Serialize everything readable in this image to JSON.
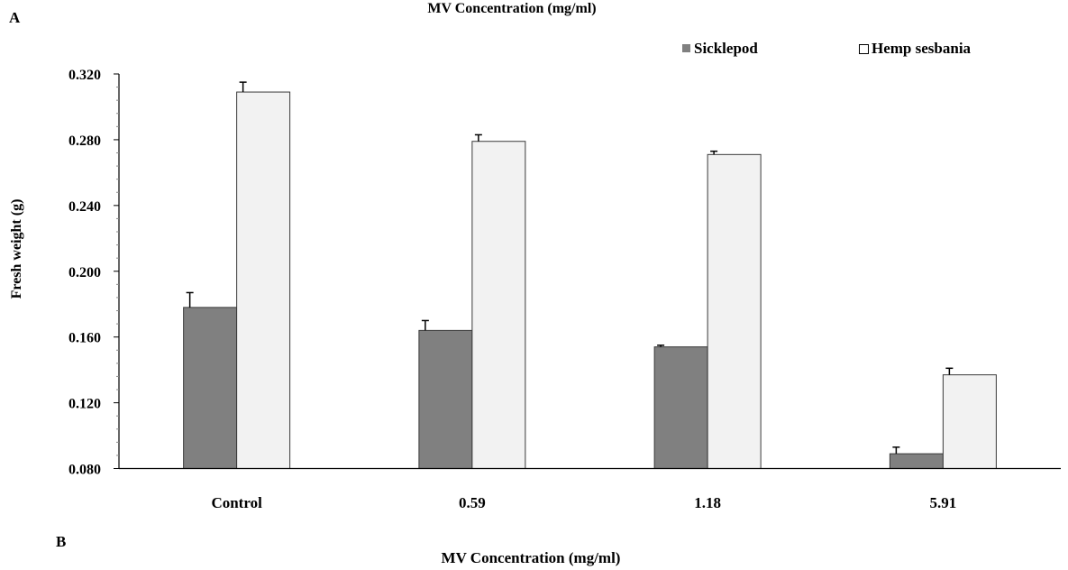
{
  "panel_labels": {
    "a": "A",
    "b": "B"
  },
  "colors": {
    "sicklepod": "#808080",
    "hemp_sesbania": "#f2f2f2",
    "bar_stroke": "#3a3a3a",
    "axis": "#000000",
    "text": "#000000"
  },
  "chart_data": {
    "type": "bar",
    "title": "MV Concentration (mg/ml)",
    "xlabel": "MV Concentration (mg/ml)",
    "ylabel": "Fresh weight (g)",
    "categories": [
      "Control",
      "0.59",
      "1.18",
      "5.91"
    ],
    "series": [
      {
        "name": "Sicklepod",
        "values": [
          0.178,
          0.164,
          0.154,
          0.089
        ],
        "errors": [
          0.009,
          0.006,
          0.001,
          0.004
        ]
      },
      {
        "name": "Hemp sesbania",
        "values": [
          0.309,
          0.279,
          0.271,
          0.137
        ],
        "errors": [
          0.006,
          0.004,
          0.002,
          0.004
        ]
      }
    ],
    "ylim": [
      0.08,
      0.32
    ],
    "yticks": [
      "0.080",
      "0.120",
      "0.160",
      "0.200",
      "0.240",
      "0.280",
      "0.320"
    ],
    "legend_position": "top-right",
    "grid": false
  }
}
